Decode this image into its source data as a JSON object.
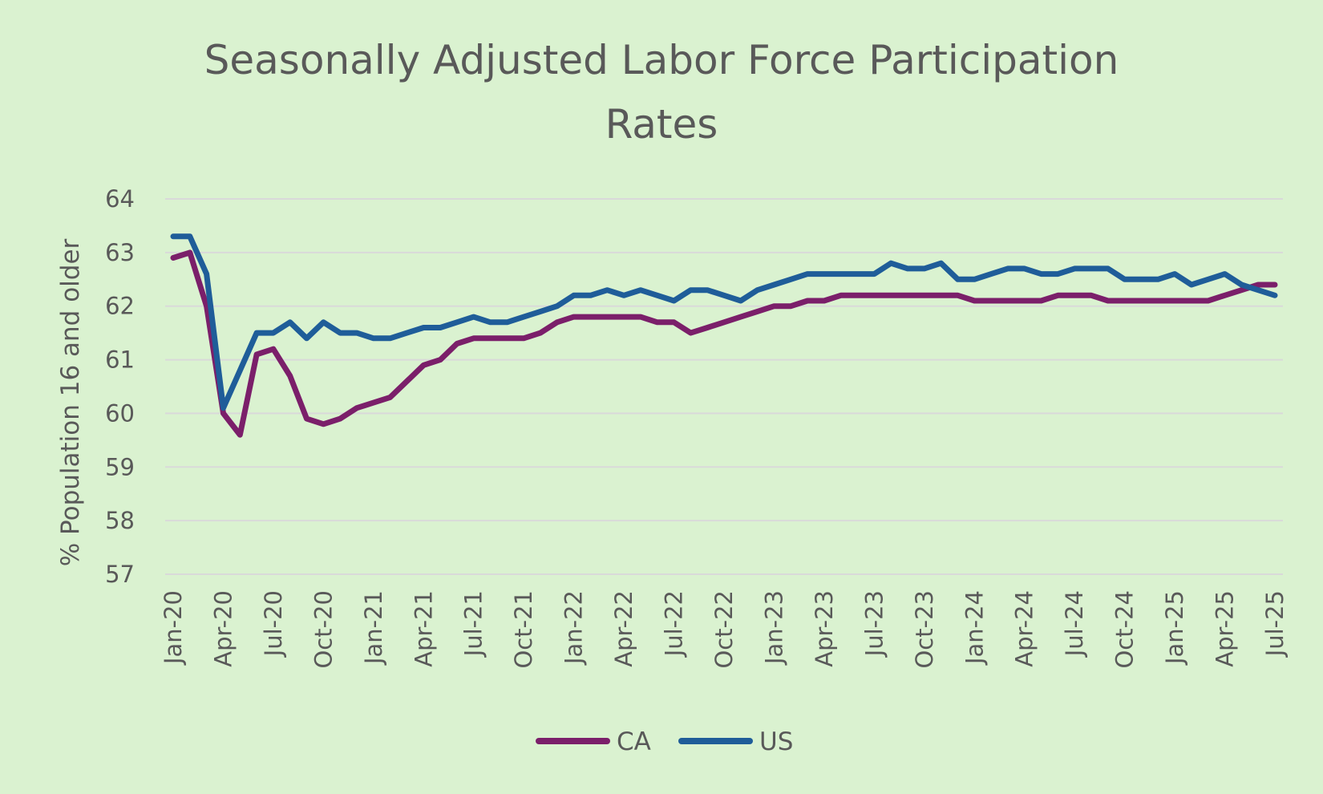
{
  "chart_data": {
    "type": "line",
    "title": [
      "Seasonally Adjusted Labor Force Participation",
      "Rates"
    ],
    "xlabel": "",
    "ylabel": "% Population 16 and older",
    "ylim": [
      57,
      64
    ],
    "yticks": [
      "57",
      "58",
      "59",
      "60",
      "61",
      "62",
      "63",
      "64"
    ],
    "grid": true,
    "legend_position": "bottom",
    "x_tick_labels": [
      "Jan-20",
      "Apr-20",
      "Jul-20",
      "Oct-20",
      "Jan-21",
      "Apr-21",
      "Jul-21",
      "Oct-21",
      "Jan-22",
      "Apr-22",
      "Jul-22",
      "Oct-22",
      "Jan-23",
      "Apr-23",
      "Jul-23",
      "Oct-23",
      "Jan-24",
      "Apr-24",
      "Jul-24",
      "Oct-24",
      "Jan-25",
      "Apr-25",
      "Jul-25"
    ],
    "x": [
      "Jan-20",
      "Feb-20",
      "Mar-20",
      "Apr-20",
      "May-20",
      "Jun-20",
      "Jul-20",
      "Aug-20",
      "Sep-20",
      "Oct-20",
      "Nov-20",
      "Dec-20",
      "Jan-21",
      "Feb-21",
      "Mar-21",
      "Apr-21",
      "May-21",
      "Jun-21",
      "Jul-21",
      "Aug-21",
      "Sep-21",
      "Oct-21",
      "Nov-21",
      "Dec-21",
      "Jan-22",
      "Feb-22",
      "Mar-22",
      "Apr-22",
      "May-22",
      "Jun-22",
      "Jul-22",
      "Aug-22",
      "Sep-22",
      "Oct-22",
      "Nov-22",
      "Dec-22",
      "Jan-23",
      "Feb-23",
      "Mar-23",
      "Apr-23",
      "May-23",
      "Jun-23",
      "Jul-23",
      "Aug-23",
      "Sep-23",
      "Oct-23",
      "Nov-23",
      "Dec-23",
      "Jan-24",
      "Feb-24",
      "Mar-24",
      "Apr-24",
      "May-24",
      "Jun-24",
      "Jul-24",
      "Aug-24",
      "Sep-24",
      "Oct-24",
      "Nov-24",
      "Dec-24",
      "Jan-25",
      "Feb-25",
      "Mar-25",
      "Apr-25",
      "May-25",
      "Jun-25",
      "Jul-25"
    ],
    "series": [
      {
        "name": "CA",
        "color": "#7b1f6a",
        "values": [
          62.9,
          63.0,
          62.0,
          60.0,
          59.6,
          61.1,
          61.2,
          60.7,
          59.9,
          59.8,
          59.9,
          60.1,
          60.2,
          60.3,
          60.6,
          60.9,
          61.0,
          61.3,
          61.4,
          61.4,
          61.4,
          61.4,
          61.5,
          61.7,
          61.8,
          61.8,
          61.8,
          61.8,
          61.8,
          61.7,
          61.7,
          61.5,
          61.6,
          61.7,
          61.8,
          61.9,
          62.0,
          62.0,
          62.1,
          62.1,
          62.2,
          62.2,
          62.2,
          62.2,
          62.2,
          62.2,
          62.2,
          62.2,
          62.1,
          62.1,
          62.1,
          62.1,
          62.1,
          62.2,
          62.2,
          62.2,
          62.1,
          62.1,
          62.1,
          62.1,
          62.1,
          62.1,
          62.1,
          62.2,
          62.3,
          62.4,
          62.4
        ]
      },
      {
        "name": "US",
        "color": "#1f5d99",
        "values": [
          63.3,
          63.3,
          62.6,
          60.1,
          60.8,
          61.5,
          61.5,
          61.7,
          61.4,
          61.7,
          61.5,
          61.5,
          61.4,
          61.4,
          61.5,
          61.6,
          61.6,
          61.7,
          61.8,
          61.7,
          61.7,
          61.8,
          61.9,
          62.0,
          62.2,
          62.2,
          62.3,
          62.2,
          62.3,
          62.2,
          62.1,
          62.3,
          62.3,
          62.2,
          62.1,
          62.3,
          62.4,
          62.5,
          62.6,
          62.6,
          62.6,
          62.6,
          62.6,
          62.8,
          62.7,
          62.7,
          62.8,
          62.5,
          62.5,
          62.6,
          62.7,
          62.7,
          62.6,
          62.6,
          62.7,
          62.7,
          62.7,
          62.5,
          62.5,
          62.5,
          62.6,
          62.4,
          62.5,
          62.6,
          62.4,
          62.3,
          62.2
        ]
      }
    ]
  }
}
